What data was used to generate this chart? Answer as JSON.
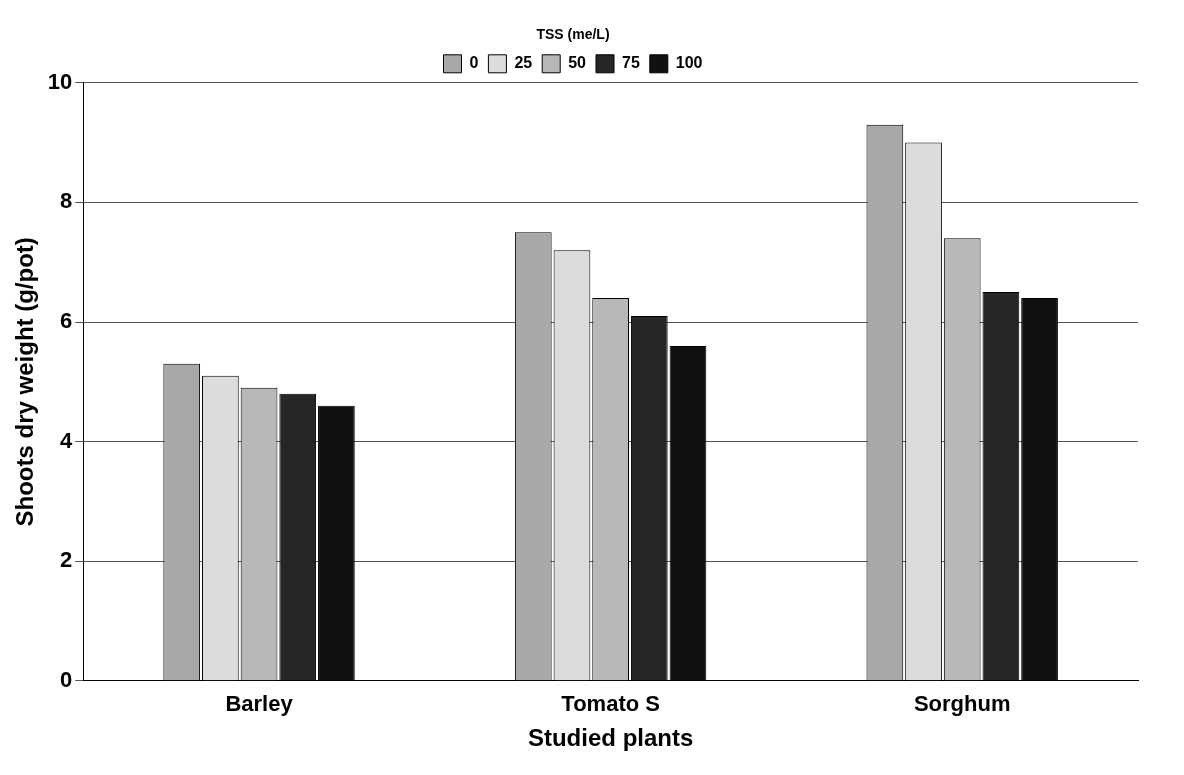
{
  "chart_data": {
    "type": "bar",
    "xlabel": "Studied plants",
    "ylabel": "Shoots dry weight (g/pot)",
    "legend_title": "TSS (me/L)",
    "categories": [
      "Barley",
      "Tomato S",
      "Sorghum"
    ],
    "series": [
      {
        "name": "0",
        "color": "#a8a8a8",
        "values": [
          5.3,
          7.5,
          9.3
        ]
      },
      {
        "name": "25",
        "color": "#dcdcdc",
        "values": [
          5.1,
          7.2,
          9.0
        ]
      },
      {
        "name": "50",
        "color": "#b8b8b8",
        "values": [
          4.9,
          6.4,
          7.4
        ]
      },
      {
        "name": "75",
        "color": "#262626",
        "values": [
          4.8,
          6.1,
          6.5
        ]
      },
      {
        "name": "100",
        "color": "#111111",
        "values": [
          4.6,
          5.6,
          6.4
        ]
      }
    ],
    "ylim": [
      0,
      10
    ],
    "yticks": [
      0,
      2,
      4,
      6,
      8,
      10
    ],
    "grid": "y",
    "legend": "top"
  }
}
